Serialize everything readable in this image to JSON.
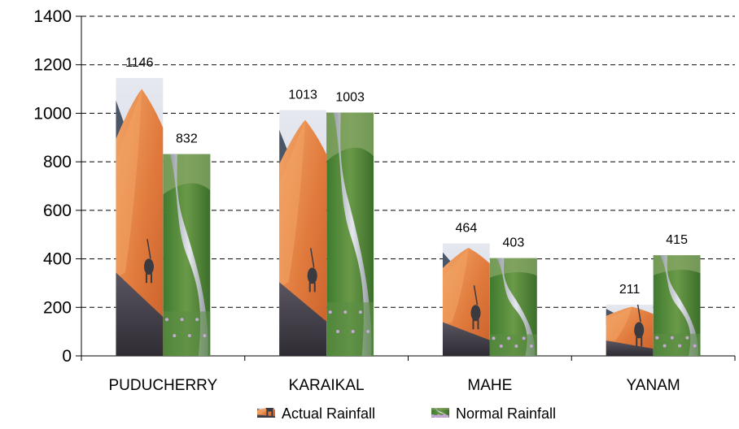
{
  "chart_data": {
    "type": "bar",
    "categories": [
      "PUDUCHERRY",
      "KARAIKAL",
      "MAHE",
      "YANAM"
    ],
    "series": [
      {
        "name": "Actual Rainfall",
        "values": [
          1146,
          1013,
          464,
          211
        ],
        "fill": "desert-photo"
      },
      {
        "name": "Normal Rainfall",
        "values": [
          832,
          1003,
          403,
          415
        ],
        "fill": "stream-photo"
      }
    ],
    "ylim": [
      0,
      1400
    ],
    "yticks": [
      0,
      200,
      400,
      600,
      800,
      1000,
      1200,
      1400
    ],
    "grid": true,
    "legend": "bottom",
    "colors": {
      "sky": "#dfe3ec",
      "dune": "#e07a3c",
      "dune_light": "#f0a060",
      "shadow": "#4a4650",
      "grass": "#4f8a3a",
      "water": "#c9ced6",
      "rock": "#7d8088"
    }
  }
}
